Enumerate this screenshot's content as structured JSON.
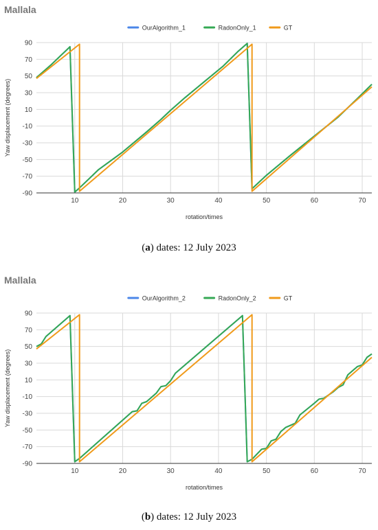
{
  "chart_data": [
    {
      "type": "line",
      "title": "Mallala",
      "xlabel": "rotation/times",
      "ylabel": "Yaw displacement (degrees)",
      "xlim": [
        2,
        72
      ],
      "ylim": [
        -90,
        90
      ],
      "xticks": [
        10,
        20,
        30,
        40,
        50,
        60,
        70
      ],
      "yticks": [
        90,
        70,
        50,
        30,
        10,
        -10,
        -30,
        -50,
        -70,
        -90
      ],
      "grid": true,
      "legend": "top-center",
      "caption_letter": "a",
      "caption_text": "dates: 12 July 2023",
      "series": [
        {
          "name": "OurAlgorithm_1",
          "color": "#4a86e8",
          "points": [
            [
              2,
              48
            ],
            [
              5,
              63
            ],
            [
              9,
              85
            ],
            [
              10,
              -89
            ],
            [
              11,
              -84
            ],
            [
              15,
              -62
            ],
            [
              20,
              -41
            ],
            [
              25,
              -17
            ],
            [
              28,
              -2
            ],
            [
              30,
              9
            ],
            [
              33,
              24
            ],
            [
              37,
              43
            ],
            [
              41,
              62
            ],
            [
              44,
              79
            ],
            [
              46,
              89
            ],
            [
              47,
              -85
            ],
            [
              50,
              -69
            ],
            [
              55,
              -45
            ],
            [
              60,
              -22
            ],
            [
              65,
              1
            ],
            [
              69,
              23
            ],
            [
              72,
              40
            ]
          ]
        },
        {
          "name": "RadonOnly_1",
          "color": "#34a853",
          "points": [
            [
              2,
              48
            ],
            [
              5,
              63
            ],
            [
              9,
              85
            ],
            [
              10,
              -89
            ],
            [
              11,
              -84
            ],
            [
              15,
              -62
            ],
            [
              20,
              -41
            ],
            [
              25,
              -17
            ],
            [
              28,
              -2
            ],
            [
              30,
              9
            ],
            [
              33,
              24
            ],
            [
              37,
              43
            ],
            [
              41,
              62
            ],
            [
              44,
              79
            ],
            [
              46,
              89
            ],
            [
              47,
              -85
            ],
            [
              50,
              -69
            ],
            [
              55,
              -45
            ],
            [
              60,
              -22
            ],
            [
              65,
              1
            ],
            [
              69,
              23
            ],
            [
              72,
              40
            ]
          ]
        },
        {
          "name": "GT",
          "color": "#f09a1a",
          "points": [
            [
              2,
              47
            ],
            [
              11,
              88
            ],
            [
              11,
              -88
            ],
            [
              47,
              88
            ],
            [
              47,
              -88
            ],
            [
              72,
              37
            ]
          ]
        }
      ]
    },
    {
      "type": "line",
      "title": "Mallala",
      "xlabel": "rotation/times",
      "ylabel": "Yaw displacement (degrees)",
      "xlim": [
        2,
        72
      ],
      "ylim": [
        -90,
        90
      ],
      "xticks": [
        10,
        20,
        30,
        40,
        50,
        60,
        70
      ],
      "yticks": [
        90,
        70,
        50,
        30,
        10,
        -10,
        -30,
        -50,
        -70,
        -90
      ],
      "grid": true,
      "legend": "top-center",
      "caption_letter": "b",
      "caption_text": "dates: 12 July 2023",
      "series": [
        {
          "name": "OurAlgorithm_2",
          "color": "#4a86e8",
          "points": [
            [
              2,
              50
            ],
            [
              3,
              53
            ],
            [
              4,
              62
            ],
            [
              9,
              87
            ],
            [
              10,
              -88
            ],
            [
              11,
              -84
            ],
            [
              22,
              -28
            ],
            [
              23,
              -27
            ],
            [
              24,
              -18
            ],
            [
              25,
              -16
            ],
            [
              27,
              -6
            ],
            [
              28,
              2
            ],
            [
              29,
              3
            ],
            [
              30,
              9
            ],
            [
              31,
              18
            ],
            [
              45,
              87
            ],
            [
              46,
              -88
            ],
            [
              47,
              -85
            ],
            [
              49,
              -73
            ],
            [
              50,
              -72
            ],
            [
              51,
              -63
            ],
            [
              52,
              -61
            ],
            [
              53,
              -52
            ],
            [
              54,
              -47
            ],
            [
              56,
              -42
            ],
            [
              57,
              -32
            ],
            [
              60,
              -18
            ],
            [
              61,
              -13
            ],
            [
              62,
              -12
            ],
            [
              64,
              -4
            ],
            [
              65,
              1
            ],
            [
              66,
              4
            ],
            [
              67,
              16
            ],
            [
              69,
              26
            ],
            [
              70,
              28
            ],
            [
              71,
              37
            ],
            [
              72,
              41
            ]
          ]
        },
        {
          "name": "RadonOnly_2",
          "color": "#34a853",
          "points": [
            [
              2,
              50
            ],
            [
              3,
              53
            ],
            [
              4,
              62
            ],
            [
              9,
              87
            ],
            [
              10,
              -88
            ],
            [
              11,
              -84
            ],
            [
              22,
              -28
            ],
            [
              23,
              -27
            ],
            [
              24,
              -18
            ],
            [
              25,
              -16
            ],
            [
              27,
              -6
            ],
            [
              28,
              2
            ],
            [
              29,
              3
            ],
            [
              30,
              9
            ],
            [
              31,
              18
            ],
            [
              45,
              87
            ],
            [
              46,
              -88
            ],
            [
              47,
              -85
            ],
            [
              49,
              -73
            ],
            [
              50,
              -72
            ],
            [
              51,
              -63
            ],
            [
              52,
              -61
            ],
            [
              53,
              -52
            ],
            [
              54,
              -47
            ],
            [
              56,
              -42
            ],
            [
              57,
              -32
            ],
            [
              60,
              -18
            ],
            [
              61,
              -13
            ],
            [
              62,
              -12
            ],
            [
              64,
              -4
            ],
            [
              65,
              1
            ],
            [
              66,
              4
            ],
            [
              67,
              16
            ],
            [
              69,
              26
            ],
            [
              70,
              28
            ],
            [
              71,
              37
            ],
            [
              72,
              41
            ]
          ]
        },
        {
          "name": "GT",
          "color": "#f09a1a",
          "points": [
            [
              2,
              47
            ],
            [
              11,
              88
            ],
            [
              11,
              -88
            ],
            [
              47,
              88
            ],
            [
              47,
              -88
            ],
            [
              72,
              37
            ]
          ]
        }
      ]
    }
  ]
}
